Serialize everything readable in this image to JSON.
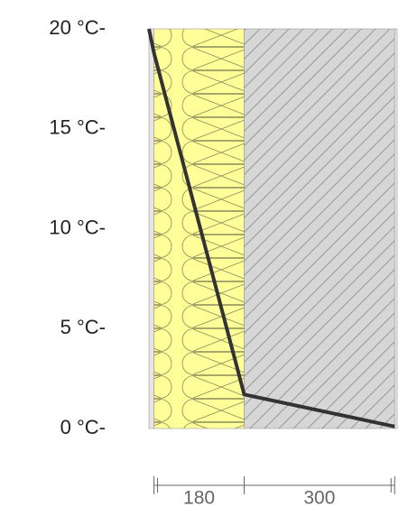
{
  "chart_data": {
    "type": "line",
    "ylim": [
      0,
      20
    ],
    "yticks": [
      {
        "value": 0,
        "label": "0 °C-"
      },
      {
        "value": 5,
        "label": "5 °C-"
      },
      {
        "value": 10,
        "label": "10 °C-"
      },
      {
        "value": 15,
        "label": "15 °C-"
      },
      {
        "value": 20,
        "label": "20 °C-"
      }
    ],
    "xlim": [
      0,
      495
    ],
    "series": [
      {
        "color": "#333333",
        "x": [
          0,
          10,
          190,
          490
        ],
        "values": [
          20,
          18.8,
          1.7,
          0.1
        ]
      }
    ],
    "dimensions": [
      180,
      300
    ],
    "insulation_color": "#ffff99",
    "masonry_color": "#d6d6d6",
    "plaster_color": "#e6e6e6"
  }
}
